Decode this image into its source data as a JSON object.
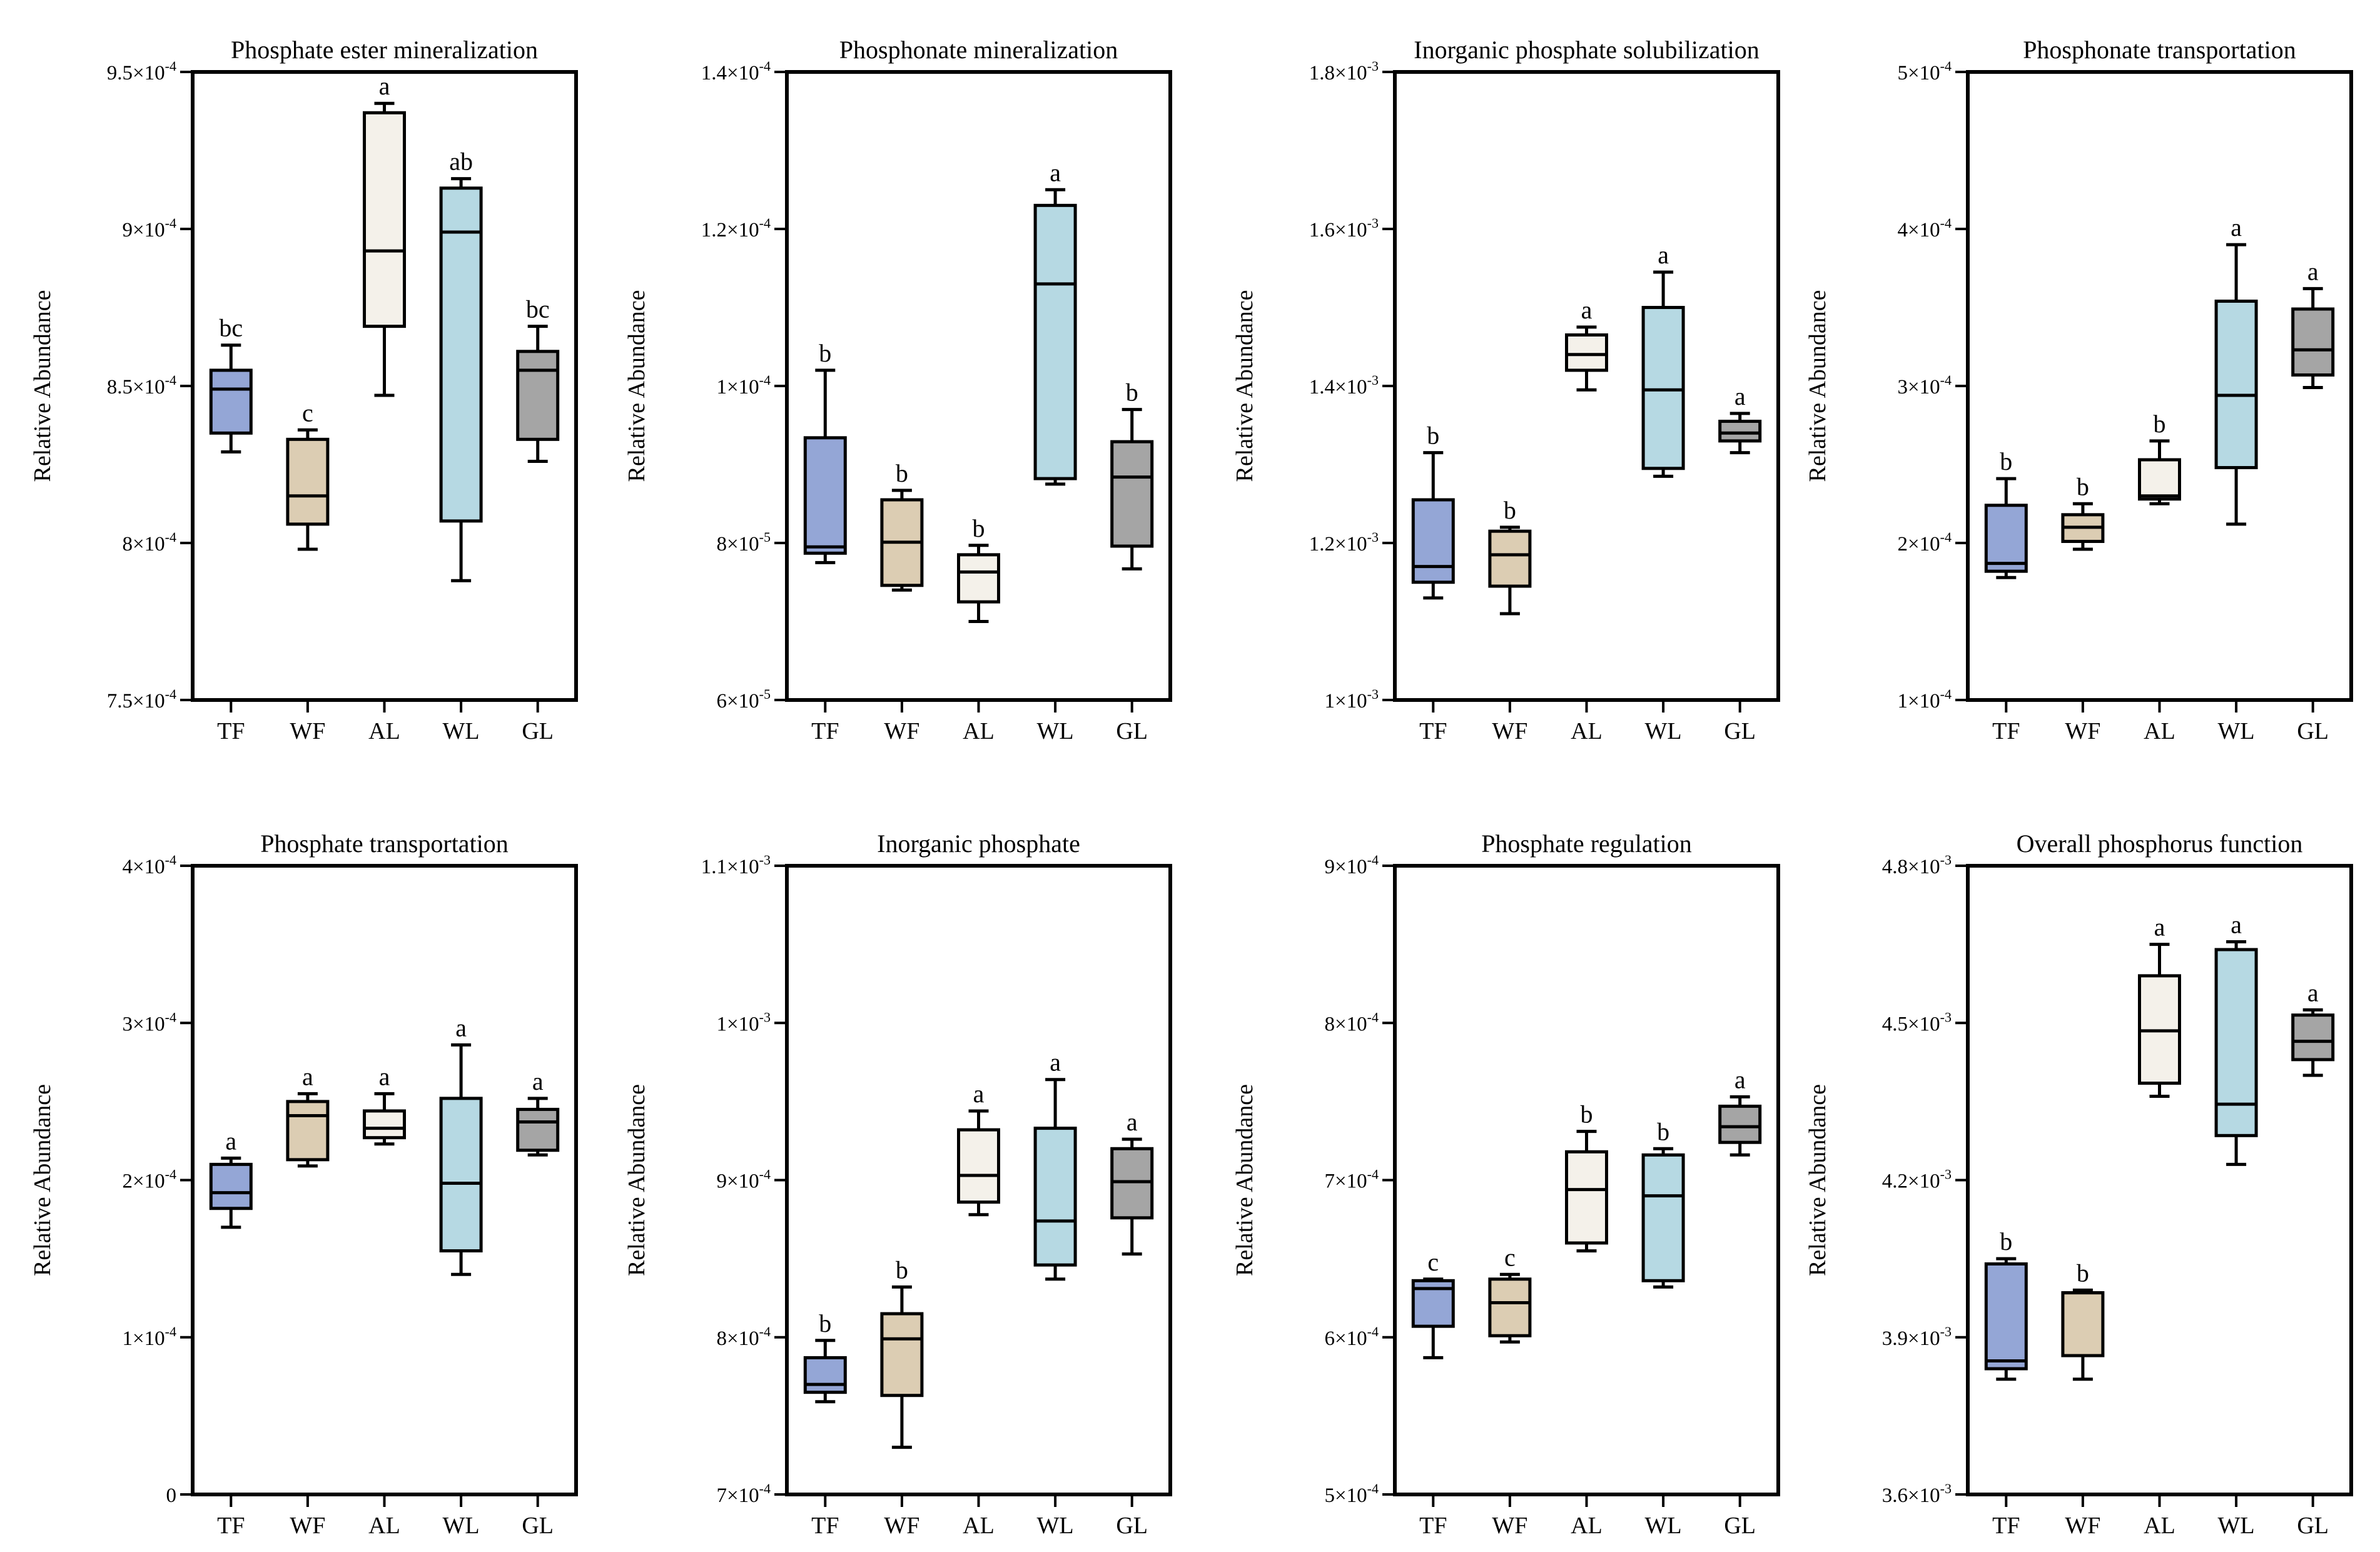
{
  "figure": {
    "ylabel": "Relative Abundance",
    "categories": [
      "TF",
      "WF",
      "AL",
      "WL",
      "GL"
    ],
    "colors": {
      "TF": "#94a6d6",
      "WF": "#dccdb3",
      "AL": "#f4f1ea",
      "WL": "#b6d9e3",
      "GL": "#a5a5a5"
    }
  },
  "chart_data": [
    {
      "type": "box",
      "title": "Phosphate ester mineralization",
      "ylabel": "Relative Abundance",
      "ylim": [
        0.00075,
        0.00095
      ],
      "yticks": [
        0.00075,
        0.0008,
        0.00085,
        0.0009,
        0.00095
      ],
      "ytick_mant": [
        "7.5",
        "8",
        "8.5",
        "9",
        "9.5"
      ],
      "ytick_exp": [
        "-4",
        "-4",
        "-4",
        "-4",
        "-4"
      ],
      "categories": [
        "TF",
        "WF",
        "AL",
        "WL",
        "GL"
      ],
      "boxes": [
        {
          "min": 0.000829,
          "q1": 0.000835,
          "median": 0.000849,
          "q3": 0.000855,
          "max": 0.000863,
          "label": "bc"
        },
        {
          "min": 0.000798,
          "q1": 0.000806,
          "median": 0.000815,
          "q3": 0.000833,
          "max": 0.000836,
          "label": "c"
        },
        {
          "min": 0.000847,
          "q1": 0.000869,
          "median": 0.000893,
          "q3": 0.000937,
          "max": 0.00094,
          "label": "a"
        },
        {
          "min": 0.000788,
          "q1": 0.000807,
          "median": 0.000899,
          "q3": 0.000913,
          "max": 0.000916,
          "label": "ab"
        },
        {
          "min": 0.000826,
          "q1": 0.000833,
          "median": 0.000855,
          "q3": 0.000861,
          "max": 0.000869,
          "label": "bc"
        }
      ]
    },
    {
      "type": "box",
      "title": "Phosphonate mineralization",
      "ylabel": "Relative Abundance",
      "ylim": [
        6e-05,
        0.00014
      ],
      "yticks": [
        6e-05,
        8e-05,
        0.0001,
        0.00012,
        0.00014
      ],
      "ytick_mant": [
        "6",
        "8",
        "1",
        "1.2",
        "1.4"
      ],
      "ytick_exp": [
        "-5",
        "-5",
        "-4",
        "-4",
        "-4"
      ],
      "categories": [
        "TF",
        "WF",
        "AL",
        "WL",
        "GL"
      ],
      "boxes": [
        {
          "min": 7.75e-05,
          "q1": 7.87e-05,
          "median": 7.95e-05,
          "q3": 9.34e-05,
          "max": 0.000102,
          "label": "b"
        },
        {
          "min": 7.4e-05,
          "q1": 7.46e-05,
          "median": 8.01e-05,
          "q3": 8.55e-05,
          "max": 8.67e-05,
          "label": "b"
        },
        {
          "min": 7e-05,
          "q1": 7.25e-05,
          "median": 7.63e-05,
          "q3": 7.85e-05,
          "max": 7.97e-05,
          "label": "b"
        },
        {
          "min": 8.75e-05,
          "q1": 8.82e-05,
          "median": 0.000113,
          "q3": 0.000123,
          "max": 0.000125,
          "label": "a"
        },
        {
          "min": 7.67e-05,
          "q1": 7.96e-05,
          "median": 8.84e-05,
          "q3": 9.29e-05,
          "max": 9.7e-05,
          "label": "b"
        }
      ]
    },
    {
      "type": "box",
      "title": "Inorganic phosphate solubilization",
      "ylabel": "Relative Abundance",
      "ylim": [
        0.001,
        0.0018
      ],
      "yticks": [
        0.001,
        0.0012,
        0.0014,
        0.0016,
        0.0018
      ],
      "ytick_mant": [
        "1",
        "1.2",
        "1.4",
        "1.6",
        "1.8"
      ],
      "ytick_exp": [
        "-3",
        "-3",
        "-3",
        "-3",
        "-3"
      ],
      "categories": [
        "TF",
        "WF",
        "AL",
        "WL",
        "GL"
      ],
      "boxes": [
        {
          "min": 0.00113,
          "q1": 0.00115,
          "median": 0.00117,
          "q3": 0.001255,
          "max": 0.001315,
          "label": "b"
        },
        {
          "min": 0.00111,
          "q1": 0.001145,
          "median": 0.001185,
          "q3": 0.001215,
          "max": 0.00122,
          "label": "b"
        },
        {
          "min": 0.001395,
          "q1": 0.00142,
          "median": 0.00144,
          "q3": 0.001465,
          "max": 0.001475,
          "label": "a"
        },
        {
          "min": 0.001285,
          "q1": 0.001295,
          "median": 0.001395,
          "q3": 0.0015,
          "max": 0.001545,
          "label": "a"
        },
        {
          "min": 0.001315,
          "q1": 0.00133,
          "median": 0.00134,
          "q3": 0.001355,
          "max": 0.001365,
          "label": "a"
        }
      ]
    },
    {
      "type": "box",
      "title": "Phosphonate transportation",
      "ylabel": "Relative Abundance",
      "ylim": [
        0.0001,
        0.0005
      ],
      "yticks": [
        0.0001,
        0.0002,
        0.0003,
        0.0004,
        0.0005
      ],
      "ytick_mant": [
        "1",
        "2",
        "3",
        "4",
        "5"
      ],
      "ytick_exp": [
        "-4",
        "-4",
        "-4",
        "-4",
        "-4"
      ],
      "categories": [
        "TF",
        "WF",
        "AL",
        "WL",
        "GL"
      ],
      "boxes": [
        {
          "min": 0.000178,
          "q1": 0.000182,
          "median": 0.000187,
          "q3": 0.000224,
          "max": 0.000241,
          "label": "b"
        },
        {
          "min": 0.000196,
          "q1": 0.000201,
          "median": 0.00021,
          "q3": 0.000218,
          "max": 0.000225,
          "label": "b"
        },
        {
          "min": 0.000225,
          "q1": 0.000228,
          "median": 0.00023,
          "q3": 0.000253,
          "max": 0.000265,
          "label": "b"
        },
        {
          "min": 0.000212,
          "q1": 0.000248,
          "median": 0.000294,
          "q3": 0.000354,
          "max": 0.00039,
          "label": "a"
        },
        {
          "min": 0.000299,
          "q1": 0.000307,
          "median": 0.000323,
          "q3": 0.000349,
          "max": 0.000362,
          "label": "a"
        }
      ]
    },
    {
      "type": "box",
      "title": "Phosphate transportation",
      "ylabel": "Relative Abundance",
      "ylim": [
        0,
        0.0004
      ],
      "yticks": [
        0,
        0.0001,
        0.0002,
        0.0003,
        0.0004
      ],
      "ytick_mant": [
        "0",
        "1",
        "2",
        "3",
        "4"
      ],
      "ytick_exp": [
        "",
        "-4",
        "-4",
        "-4",
        "-4"
      ],
      "categories": [
        "TF",
        "WF",
        "AL",
        "WL",
        "GL"
      ],
      "boxes": [
        {
          "min": 0.00017,
          "q1": 0.000182,
          "median": 0.000192,
          "q3": 0.00021,
          "max": 0.000214,
          "label": "a"
        },
        {
          "min": 0.000209,
          "q1": 0.000213,
          "median": 0.000241,
          "q3": 0.00025,
          "max": 0.000255,
          "label": "a"
        },
        {
          "min": 0.000223,
          "q1": 0.000227,
          "median": 0.000233,
          "q3": 0.000244,
          "max": 0.000255,
          "label": "a"
        },
        {
          "min": 0.00014,
          "q1": 0.000155,
          "median": 0.000198,
          "q3": 0.000252,
          "max": 0.000286,
          "label": "a"
        },
        {
          "min": 0.000216,
          "q1": 0.000219,
          "median": 0.000237,
          "q3": 0.000245,
          "max": 0.000252,
          "label": "a"
        }
      ]
    },
    {
      "type": "box",
      "title": "Inorganic phosphate",
      "ylabel": "Relative Abundance",
      "ylim": [
        0.0007,
        0.0011
      ],
      "yticks": [
        0.0007,
        0.0008,
        0.0009,
        0.001,
        0.0011
      ],
      "ytick_mant": [
        "7",
        "8",
        "9",
        "1",
        "1.1"
      ],
      "ytick_exp": [
        "-4",
        "-4",
        "-4",
        "-3",
        "-3"
      ],
      "categories": [
        "TF",
        "WF",
        "AL",
        "WL",
        "GL"
      ],
      "boxes": [
        {
          "min": 0.000759,
          "q1": 0.000765,
          "median": 0.00077,
          "q3": 0.000787,
          "max": 0.000798,
          "label": "b"
        },
        {
          "min": 0.00073,
          "q1": 0.000763,
          "median": 0.000799,
          "q3": 0.000815,
          "max": 0.000832,
          "label": "b"
        },
        {
          "min": 0.000878,
          "q1": 0.000886,
          "median": 0.000903,
          "q3": 0.000932,
          "max": 0.000944,
          "label": "a"
        },
        {
          "min": 0.000837,
          "q1": 0.000846,
          "median": 0.000874,
          "q3": 0.000933,
          "max": 0.000964,
          "label": "a"
        },
        {
          "min": 0.000853,
          "q1": 0.000876,
          "median": 0.000899,
          "q3": 0.00092,
          "max": 0.000926,
          "label": "a"
        }
      ]
    },
    {
      "type": "box",
      "title": "Phosphate regulation",
      "ylabel": "Relative Abundance",
      "ylim": [
        0.0005,
        0.0009
      ],
      "yticks": [
        0.0005,
        0.0006,
        0.0007,
        0.0008,
        0.0009
      ],
      "ytick_mant": [
        "5",
        "6",
        "7",
        "8",
        "9"
      ],
      "ytick_exp": [
        "-4",
        "-4",
        "-4",
        "-4",
        "-4"
      ],
      "categories": [
        "TF",
        "WF",
        "AL",
        "WL",
        "GL"
      ],
      "boxes": [
        {
          "min": 0.000587,
          "q1": 0.000607,
          "median": 0.000631,
          "q3": 0.000636,
          "max": 0.000637,
          "label": "c"
        },
        {
          "min": 0.000597,
          "q1": 0.000601,
          "median": 0.000622,
          "q3": 0.000637,
          "max": 0.00064,
          "label": "c"
        },
        {
          "min": 0.000655,
          "q1": 0.00066,
          "median": 0.000694,
          "q3": 0.000718,
          "max": 0.000731,
          "label": "b"
        },
        {
          "min": 0.000632,
          "q1": 0.000636,
          "median": 0.00069,
          "q3": 0.000716,
          "max": 0.00072,
          "label": "b"
        },
        {
          "min": 0.000716,
          "q1": 0.000724,
          "median": 0.000734,
          "q3": 0.000747,
          "max": 0.000753,
          "label": "a"
        }
      ]
    },
    {
      "type": "box",
      "title": "Overall phosphorus function",
      "ylabel": "Relative Abundance",
      "ylim": [
        0.0036,
        0.0048
      ],
      "yticks": [
        0.0036,
        0.0039,
        0.0042,
        0.0045,
        0.0048
      ],
      "ytick_mant": [
        "3.6",
        "3.9",
        "4.2",
        "4.5",
        "4.8"
      ],
      "ytick_exp": [
        "-3",
        "-3",
        "-3",
        "-3",
        "-3"
      ],
      "categories": [
        "TF",
        "WF",
        "AL",
        "WL",
        "GL"
      ],
      "boxes": [
        {
          "min": 0.00382,
          "q1": 0.00384,
          "median": 0.003855,
          "q3": 0.00404,
          "max": 0.00405,
          "label": "b"
        },
        {
          "min": 0.00382,
          "q1": 0.003865,
          "median": 0.003985,
          "q3": 0.003985,
          "max": 0.00399,
          "label": "b"
        },
        {
          "min": 0.00436,
          "q1": 0.004385,
          "median": 0.004485,
          "q3": 0.00459,
          "max": 0.00465,
          "label": "a"
        },
        {
          "min": 0.00423,
          "q1": 0.004285,
          "median": 0.004345,
          "q3": 0.00464,
          "max": 0.004655,
          "label": "a"
        },
        {
          "min": 0.0044,
          "q1": 0.00443,
          "median": 0.004465,
          "q3": 0.004515,
          "max": 0.004525,
          "label": "a"
        }
      ]
    }
  ]
}
